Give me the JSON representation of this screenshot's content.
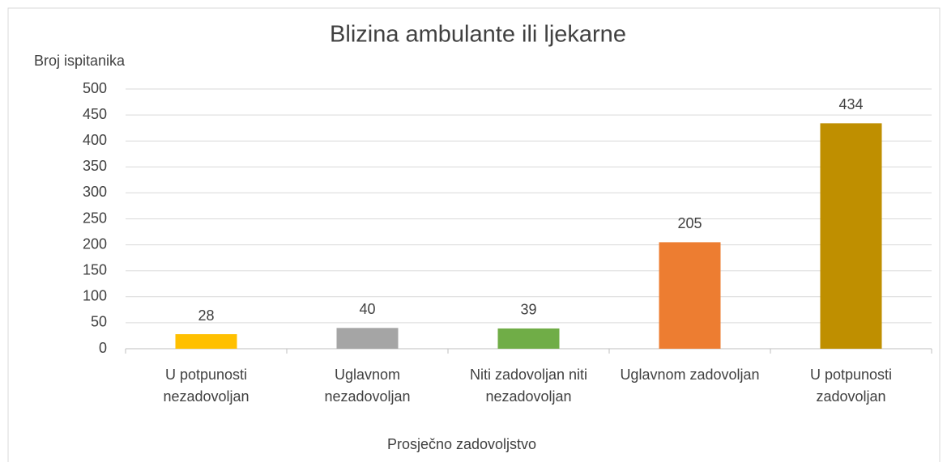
{
  "chart_data": {
    "type": "bar",
    "title": "Blizina ambulante ili ljekarne",
    "y_label": "Broj ispitanika",
    "x_label": "Prosječno zadovoljstvo",
    "categories": [
      "U potpunosti nezadovoljan",
      "Uglavnom nezadovoljan",
      "Niti zadovoljan niti nezadovoljan",
      "Uglavnom zadovoljan",
      "U potpunosti zadovoljan"
    ],
    "values": [
      28,
      40,
      39,
      205,
      434
    ],
    "colors": [
      "#ffc000",
      "#a5a5a5",
      "#70ad47",
      "#ed7d31",
      "#bf8f00"
    ],
    "ylim": [
      0,
      500
    ],
    "yticks": [
      0,
      50,
      100,
      150,
      200,
      250,
      300,
      350,
      400,
      450,
      500
    ],
    "grid": true
  }
}
